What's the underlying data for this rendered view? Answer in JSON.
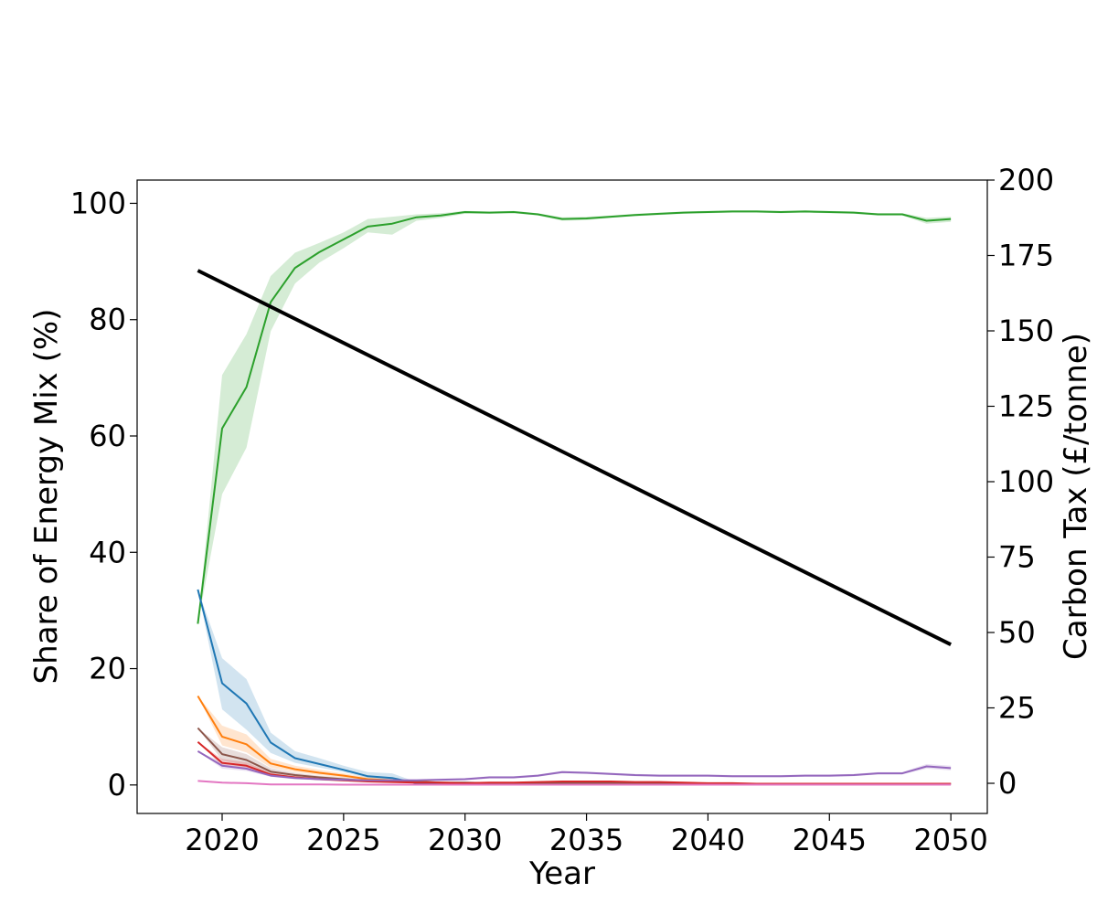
{
  "chart_data": {
    "type": "line",
    "title": "",
    "xlabel": "Year",
    "ylabel_left": "Share of Energy Mix (%)",
    "ylabel_right": "Carbon Tax (£/tonne)",
    "xlim": [
      2016.5,
      2051.5
    ],
    "ylim_left": [
      -4.9,
      104
    ],
    "ylim_right": [
      -10,
      200
    ],
    "x_ticks": [
      2020,
      2025,
      2030,
      2035,
      2040,
      2045,
      2050
    ],
    "y_left_ticks": [
      0,
      20,
      40,
      60,
      80,
      100
    ],
    "y_right_ticks": [
      0,
      25,
      50,
      75,
      100,
      125,
      150,
      175,
      200
    ],
    "grid": false,
    "legend": "none",
    "x": [
      2019,
      2020,
      2021,
      2022,
      2023,
      2024,
      2025,
      2026,
      2027,
      2028,
      2029,
      2030,
      2031,
      2032,
      2033,
      2034,
      2035,
      2036,
      2037,
      2038,
      2039,
      2040,
      2041,
      2042,
      2043,
      2044,
      2045,
      2046,
      2047,
      2048,
      2049,
      2050
    ],
    "series": [
      {
        "color": "#2ca02c",
        "axis": "left",
        "values": [
          27.7,
          61.3,
          68.4,
          83.0,
          88.9,
          91.6,
          93.8,
          96.0,
          96.5,
          97.6,
          97.9,
          98.5,
          98.4,
          98.5,
          98.1,
          97.3,
          97.4,
          97.7,
          98.0,
          98.2,
          98.4,
          98.5,
          98.6,
          98.6,
          98.5,
          98.6,
          98.5,
          98.4,
          98.1,
          98.1,
          97.0,
          97.3
        ],
        "lower": [
          27.7,
          50.0,
          58.0,
          78.0,
          86.2,
          89.8,
          92.3,
          95.0,
          94.6,
          97.0,
          97.5,
          98.2,
          98.2,
          98.3,
          97.9,
          97.0,
          97.1,
          97.5,
          97.8,
          98.0,
          98.2,
          98.3,
          98.4,
          98.4,
          98.3,
          98.4,
          98.3,
          98.2,
          97.9,
          97.9,
          96.5,
          96.8
        ],
        "upper": [
          27.7,
          70.5,
          77.5,
          87.5,
          91.5,
          93.2,
          95.0,
          97.3,
          97.7,
          98.1,
          98.3,
          98.7,
          98.6,
          98.7,
          98.3,
          97.6,
          97.7,
          97.9,
          98.2,
          98.4,
          98.6,
          98.7,
          98.8,
          98.8,
          98.7,
          98.8,
          98.7,
          98.6,
          98.3,
          98.3,
          97.5,
          97.7
        ]
      },
      {
        "color": "#1f77b4",
        "axis": "left",
        "values": [
          33.6,
          17.5,
          14.0,
          7.3,
          4.6,
          3.6,
          2.6,
          1.5,
          1.2,
          0.3,
          0.3,
          0.2,
          0.2,
          0.2,
          0.2,
          0.2,
          0.2,
          0.2,
          0.2,
          0.2,
          0.2,
          0.2,
          0.2,
          0.2,
          0.2,
          0.2,
          0.2,
          0.2,
          0.2,
          0.2,
          0.2,
          0.2
        ],
        "lower": [
          33.6,
          13.0,
          9.5,
          5.5,
          3.8,
          3.0,
          2.2,
          1.2,
          0.9,
          0.2,
          0.2,
          0.1,
          0.1,
          0.1,
          0.1,
          0.1,
          0.1,
          0.1,
          0.1,
          0.1,
          0.1,
          0.1,
          0.1,
          0.1,
          0.1,
          0.1,
          0.1,
          0.1,
          0.1,
          0.1,
          0.1,
          0.1
        ],
        "upper": [
          33.6,
          21.8,
          18.2,
          9.0,
          5.8,
          4.6,
          3.3,
          2.2,
          2.0,
          0.5,
          0.4,
          0.3,
          0.3,
          0.3,
          0.3,
          0.3,
          0.3,
          0.3,
          0.3,
          0.3,
          0.3,
          0.3,
          0.3,
          0.3,
          0.3,
          0.3,
          0.3,
          0.3,
          0.3,
          0.3,
          0.3,
          0.3
        ]
      },
      {
        "color": "#ff7f0e",
        "axis": "left",
        "values": [
          15.3,
          8.3,
          7.0,
          3.7,
          2.7,
          2.1,
          1.6,
          1.0,
          0.8,
          0.6,
          0.4,
          0.3,
          0.3,
          0.3,
          0.3,
          0.3,
          0.3,
          0.3,
          0.3,
          0.3,
          0.2,
          0.2,
          0.2,
          0.2,
          0.2,
          0.2,
          0.2,
          0.2,
          0.2,
          0.2,
          0.2,
          0.2
        ],
        "lower": [
          15.3,
          6.8,
          5.6,
          3.0,
          2.2,
          1.7,
          1.3,
          0.8,
          0.6,
          0.5,
          0.3,
          0.2,
          0.2,
          0.2,
          0.2,
          0.2,
          0.2,
          0.2,
          0.2,
          0.2,
          0.1,
          0.1,
          0.1,
          0.1,
          0.1,
          0.1,
          0.1,
          0.1,
          0.1,
          0.1,
          0.1,
          0.1
        ],
        "upper": [
          15.3,
          10.2,
          8.7,
          4.5,
          3.3,
          2.6,
          2.0,
          1.3,
          1.0,
          0.8,
          0.5,
          0.4,
          0.4,
          0.4,
          0.4,
          0.4,
          0.4,
          0.4,
          0.4,
          0.4,
          0.3,
          0.3,
          0.3,
          0.3,
          0.3,
          0.3,
          0.3,
          0.3,
          0.3,
          0.3,
          0.3,
          0.3
        ]
      },
      {
        "color": "#8c564b",
        "axis": "left",
        "values": [
          9.8,
          5.3,
          4.3,
          2.3,
          1.7,
          1.3,
          1.0,
          0.7,
          0.6,
          0.5,
          0.4,
          0.4,
          0.3,
          0.3,
          0.3,
          0.3,
          0.3,
          0.3,
          0.3,
          0.3,
          0.2,
          0.2,
          0.2,
          0.2,
          0.2,
          0.2,
          0.2,
          0.2,
          0.2,
          0.2,
          0.2,
          0.2
        ],
        "lower": [
          9.8,
          4.2,
          3.4,
          1.8,
          1.3,
          1.0,
          0.8,
          0.5,
          0.4,
          0.4,
          0.3,
          0.3,
          0.2,
          0.2,
          0.2,
          0.2,
          0.2,
          0.2,
          0.2,
          0.2,
          0.1,
          0.1,
          0.1,
          0.1,
          0.1,
          0.1,
          0.1,
          0.1,
          0.1,
          0.1,
          0.1,
          0.1
        ],
        "upper": [
          9.8,
          6.5,
          5.3,
          2.9,
          2.1,
          1.6,
          1.3,
          0.9,
          0.8,
          0.6,
          0.5,
          0.5,
          0.4,
          0.4,
          0.4,
          0.4,
          0.4,
          0.4,
          0.4,
          0.4,
          0.3,
          0.3,
          0.3,
          0.3,
          0.3,
          0.3,
          0.3,
          0.3,
          0.3,
          0.3,
          0.3,
          0.3
        ]
      },
      {
        "color": "#d62728",
        "axis": "left",
        "values": [
          7.4,
          3.8,
          3.3,
          1.8,
          1.3,
          1.0,
          0.8,
          0.6,
          0.5,
          0.4,
          0.4,
          0.3,
          0.4,
          0.4,
          0.5,
          0.6,
          0.6,
          0.6,
          0.5,
          0.5,
          0.4,
          0.3,
          0.3,
          0.2,
          0.2,
          0.2,
          0.2,
          0.2,
          0.2,
          0.2,
          0.2,
          0.2
        ],
        "lower": [
          7.4,
          3.2,
          2.8,
          1.5,
          1.1,
          0.8,
          0.6,
          0.5,
          0.4,
          0.3,
          0.3,
          0.2,
          0.3,
          0.3,
          0.4,
          0.5,
          0.5,
          0.5,
          0.4,
          0.4,
          0.3,
          0.2,
          0.2,
          0.1,
          0.1,
          0.1,
          0.1,
          0.1,
          0.1,
          0.1,
          0.1,
          0.1
        ],
        "upper": [
          7.4,
          4.5,
          3.9,
          2.1,
          1.5,
          1.2,
          1.0,
          0.7,
          0.6,
          0.5,
          0.5,
          0.4,
          0.5,
          0.5,
          0.6,
          0.7,
          0.7,
          0.7,
          0.6,
          0.6,
          0.5,
          0.4,
          0.4,
          0.3,
          0.3,
          0.3,
          0.3,
          0.3,
          0.3,
          0.3,
          0.3,
          0.3
        ]
      },
      {
        "color": "#9467bd",
        "axis": "left",
        "values": [
          5.8,
          3.3,
          2.8,
          1.6,
          1.2,
          1.0,
          0.9,
          0.8,
          0.8,
          0.8,
          0.9,
          1.0,
          1.3,
          1.3,
          1.6,
          2.2,
          2.1,
          1.9,
          1.7,
          1.6,
          1.6,
          1.6,
          1.5,
          1.5,
          1.5,
          1.6,
          1.6,
          1.7,
          2.0,
          2.0,
          3.2,
          2.9
        ],
        "lower": [
          5.8,
          2.8,
          2.4,
          1.4,
          1.0,
          0.8,
          0.7,
          0.6,
          0.6,
          0.6,
          0.7,
          0.8,
          1.1,
          1.1,
          1.4,
          2.0,
          1.9,
          1.7,
          1.5,
          1.4,
          1.4,
          1.4,
          1.3,
          1.3,
          1.3,
          1.4,
          1.4,
          1.5,
          1.8,
          1.8,
          2.8,
          2.5
        ],
        "upper": [
          5.8,
          3.9,
          3.3,
          1.9,
          1.4,
          1.2,
          1.1,
          1.0,
          1.0,
          1.0,
          1.1,
          1.2,
          1.5,
          1.5,
          1.8,
          2.4,
          2.3,
          2.1,
          1.9,
          1.8,
          1.8,
          1.8,
          1.7,
          1.7,
          1.7,
          1.8,
          1.8,
          1.9,
          2.2,
          2.2,
          3.6,
          3.3
        ]
      },
      {
        "color": "#e377c2",
        "axis": "left",
        "values": [
          0.7,
          0.4,
          0.3,
          0.1,
          0.1,
          0.1,
          0.05,
          0.05,
          0.05,
          0.05,
          0.05,
          0.05,
          0.05,
          0.05,
          0.05,
          0.05,
          0.05,
          0.05,
          0.05,
          0.05,
          0.05,
          0.05,
          0.05,
          0.05,
          0.05,
          0.05,
          0.05,
          0.05,
          0.05,
          0.05,
          0.05,
          0.05
        ],
        "lower": [
          0.7,
          0.3,
          0.2,
          0.05,
          0.05,
          0.05,
          0,
          0,
          0,
          0,
          0,
          0,
          0,
          0,
          0,
          0,
          0,
          0,
          0,
          0,
          0,
          0,
          0,
          0,
          0,
          0,
          0,
          0,
          0,
          0,
          0,
          0
        ],
        "upper": [
          0.7,
          0.5,
          0.4,
          0.2,
          0.2,
          0.2,
          0.1,
          0.1,
          0.1,
          0.1,
          0.1,
          0.1,
          0.1,
          0.1,
          0.1,
          0.1,
          0.1,
          0.1,
          0.1,
          0.1,
          0.1,
          0.1,
          0.1,
          0.1,
          0.1,
          0.1,
          0.1,
          0.1,
          0.1,
          0.1,
          0.1,
          0.1
        ]
      },
      {
        "color": "#000000",
        "axis": "right",
        "x": [
          2019,
          2050
        ],
        "values": [
          170,
          46
        ]
      }
    ]
  }
}
